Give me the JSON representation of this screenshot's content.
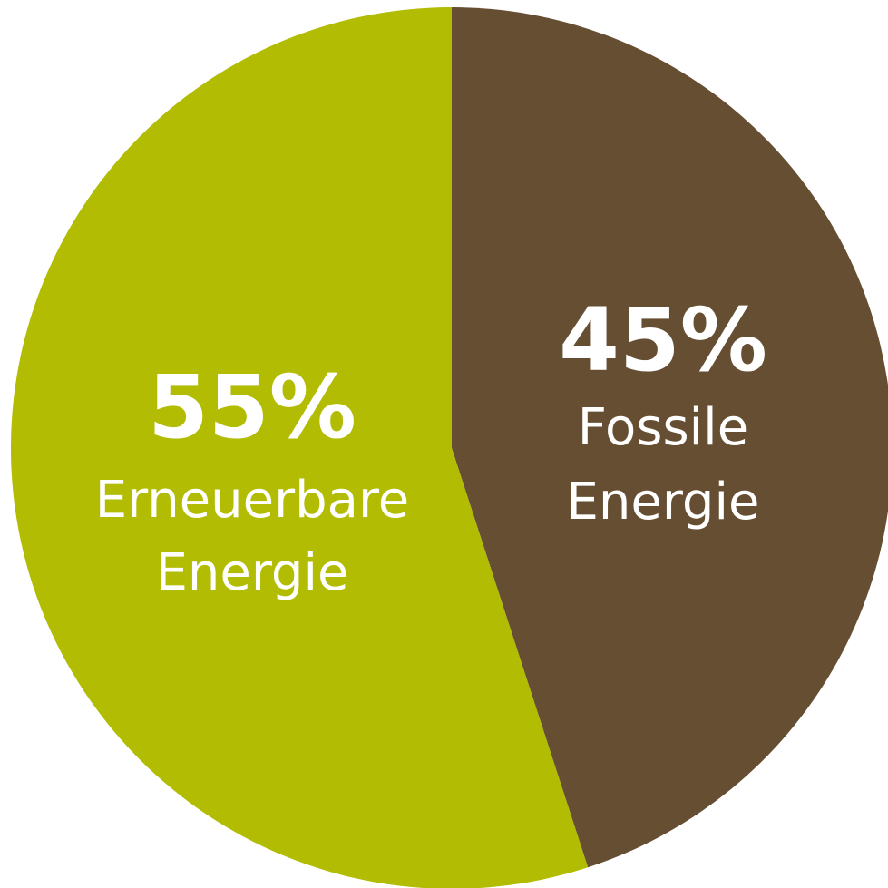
{
  "chart_data": {
    "type": "pie",
    "slices": [
      {
        "value_label": "45%",
        "value": 45,
        "label_line1": "Fossile",
        "label_line2": "Energie",
        "color": "#654e32"
      },
      {
        "value_label": "55%",
        "value": 55,
        "label_line1": "Erneuerbare",
        "label_line2": "Energie",
        "color": "#b1bc02"
      }
    ],
    "start_angle_deg": 0,
    "direction": "clockwise"
  }
}
